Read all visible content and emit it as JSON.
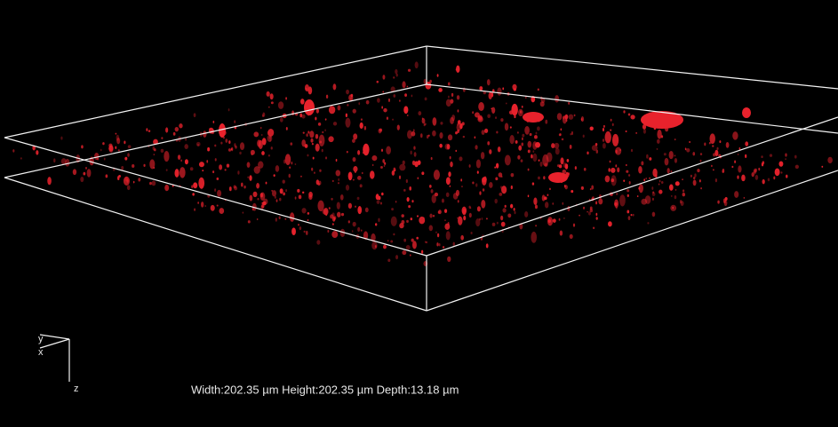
{
  "axes": {
    "y": "y",
    "x": "x",
    "z": "z"
  },
  "dimensions": "Width:202.35 µm Height:202.35 µm Depth:13.18 µm"
}
